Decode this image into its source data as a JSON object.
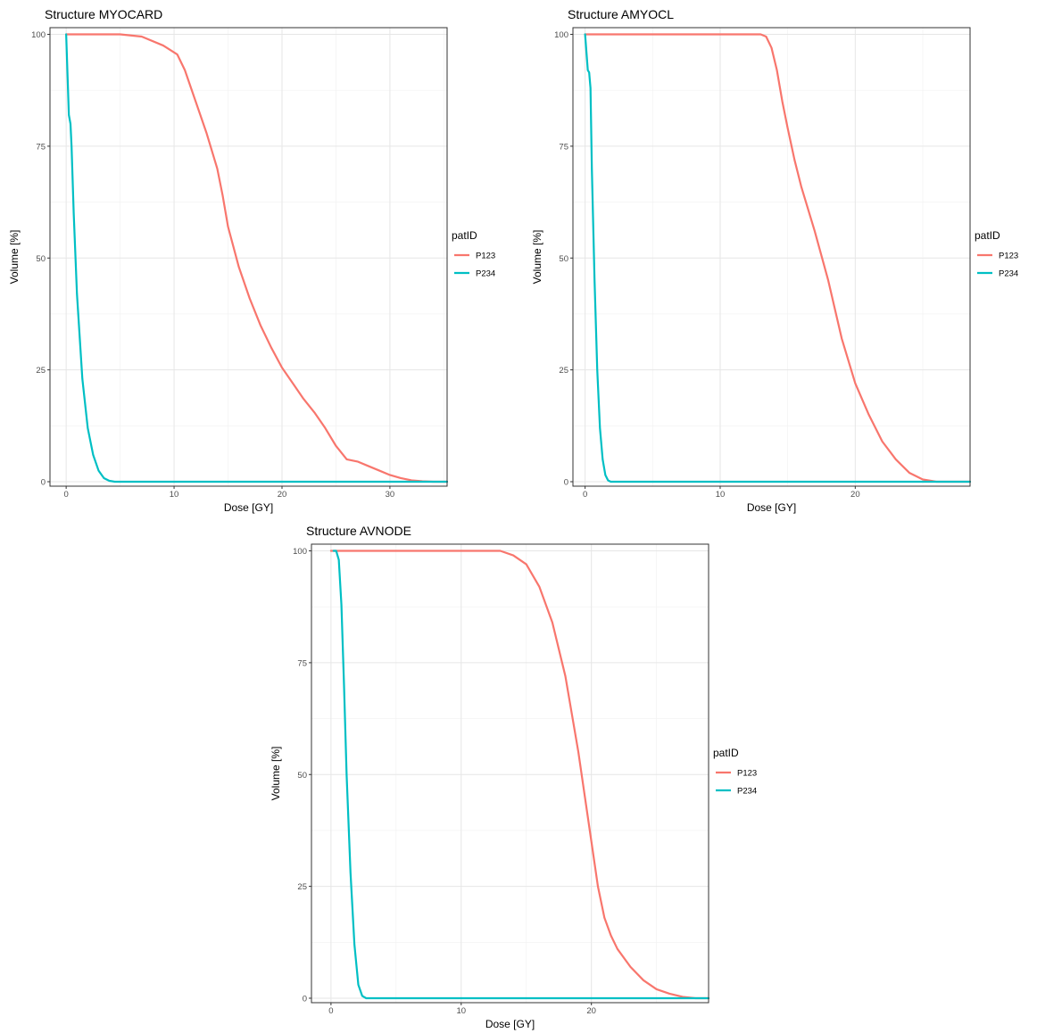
{
  "chart_data": [
    {
      "type": "line",
      "title": "Structure MYOCARD",
      "xlabel": "Dose [GY]",
      "ylabel": "Volume [%]",
      "xlim": [
        -1.5,
        35.3
      ],
      "ylim": [
        -1,
        101.5
      ],
      "xticks": [
        0,
        10,
        20,
        30
      ],
      "yticks": [
        0,
        25,
        50,
        75,
        100
      ],
      "grid": true,
      "legend": {
        "title": "patID",
        "position": "right"
      },
      "series": [
        {
          "name": "P123",
          "color": "#F8766D",
          "points": [
            [
              0,
              100
            ],
            [
              5,
              100
            ],
            [
              7,
              99.5
            ],
            [
              9,
              97.5
            ],
            [
              10.3,
              95.5
            ],
            [
              11,
              92
            ],
            [
              12,
              85
            ],
            [
              13,
              78
            ],
            [
              14,
              70
            ],
            [
              14.5,
              64
            ],
            [
              15,
              57
            ],
            [
              16,
              48
            ],
            [
              17,
              41
            ],
            [
              18,
              35
            ],
            [
              19,
              30
            ],
            [
              20,
              25.5
            ],
            [
              21,
              22
            ],
            [
              22,
              18.5
            ],
            [
              23,
              15.5
            ],
            [
              24,
              12
            ],
            [
              25,
              8
            ],
            [
              26,
              5
            ],
            [
              27,
              4.5
            ],
            [
              28,
              3.5
            ],
            [
              29,
              2.5
            ],
            [
              30,
              1.5
            ],
            [
              31,
              0.8
            ],
            [
              32,
              0.3
            ],
            [
              33,
              0.1
            ],
            [
              34,
              0
            ],
            [
              35.3,
              0
            ]
          ]
        },
        {
          "name": "P234",
          "color": "#00BFC4",
          "points": [
            [
              0,
              100
            ],
            [
              0.25,
              82
            ],
            [
              0.4,
              80
            ],
            [
              0.5,
              75
            ],
            [
              0.7,
              60
            ],
            [
              1,
              42
            ],
            [
              1.5,
              23
            ],
            [
              2,
              12
            ],
            [
              2.5,
              6
            ],
            [
              3,
              2.5
            ],
            [
              3.5,
              0.8
            ],
            [
              4,
              0.2
            ],
            [
              4.5,
              0
            ],
            [
              35.3,
              0
            ]
          ]
        }
      ]
    },
    {
      "type": "line",
      "title": "Structure AMYOCL",
      "xlabel": "Dose [GY]",
      "ylabel": "Volume [%]",
      "xlim": [
        -0.9,
        28.5
      ],
      "ylim": [
        -1,
        101.5
      ],
      "xticks": [
        0,
        10,
        20
      ],
      "yticks": [
        0,
        25,
        50,
        75,
        100
      ],
      "grid": true,
      "legend": {
        "title": "patID",
        "position": "right"
      },
      "series": [
        {
          "name": "P123",
          "color": "#F8766D",
          "points": [
            [
              0,
              100
            ],
            [
              13,
              100
            ],
            [
              13.4,
              99.5
            ],
            [
              13.8,
              97
            ],
            [
              14.2,
              92
            ],
            [
              14.6,
              85
            ],
            [
              15,
              79
            ],
            [
              15.5,
              72
            ],
            [
              16,
              66
            ],
            [
              17,
              56
            ],
            [
              18,
              45
            ],
            [
              19,
              32
            ],
            [
              20,
              22
            ],
            [
              21,
              15
            ],
            [
              22,
              9
            ],
            [
              23,
              5
            ],
            [
              24,
              2
            ],
            [
              25,
              0.5
            ],
            [
              26,
              0
            ],
            [
              28.5,
              0
            ]
          ]
        },
        {
          "name": "P234",
          "color": "#00BFC4",
          "points": [
            [
              0,
              100
            ],
            [
              0.2,
              92
            ],
            [
              0.3,
              91.5
            ],
            [
              0.4,
              88
            ],
            [
              0.5,
              70
            ],
            [
              0.7,
              45
            ],
            [
              0.9,
              25
            ],
            [
              1.1,
              12
            ],
            [
              1.3,
              5
            ],
            [
              1.5,
              1.5
            ],
            [
              1.7,
              0.3
            ],
            [
              1.9,
              0
            ],
            [
              28.5,
              0
            ]
          ]
        }
      ]
    },
    {
      "type": "line",
      "title": "Structure AVNODE",
      "xlabel": "Dose [GY]",
      "ylabel": "Volume [%]",
      "xlim": [
        -1.5,
        29
      ],
      "ylim": [
        -1,
        101.5
      ],
      "xticks": [
        0,
        10,
        20
      ],
      "yticks": [
        0,
        25,
        50,
        75,
        100
      ],
      "grid": true,
      "legend": {
        "title": "patID",
        "position": "right"
      },
      "series": [
        {
          "name": "P123",
          "color": "#F8766D",
          "points": [
            [
              0,
              100
            ],
            [
              13,
              100
            ],
            [
              14,
              99
            ],
            [
              15,
              97
            ],
            [
              16,
              92
            ],
            [
              17,
              84
            ],
            [
              18,
              72
            ],
            [
              19,
              55
            ],
            [
              19.5,
              45
            ],
            [
              20,
              35
            ],
            [
              20.5,
              25
            ],
            [
              21,
              18
            ],
            [
              21.5,
              14
            ],
            [
              22,
              11
            ],
            [
              23,
              7
            ],
            [
              24,
              4
            ],
            [
              25,
              2
            ],
            [
              26,
              1
            ],
            [
              27,
              0.3
            ],
            [
              28,
              0
            ],
            [
              29,
              0
            ]
          ]
        },
        {
          "name": "P234",
          "color": "#00BFC4",
          "points": [
            [
              0.2,
              100
            ],
            [
              0.4,
              100
            ],
            [
              0.6,
              98
            ],
            [
              0.8,
              88
            ],
            [
              1,
              70
            ],
            [
              1.2,
              50
            ],
            [
              1.5,
              28
            ],
            [
              1.8,
              12
            ],
            [
              2.1,
              3
            ],
            [
              2.4,
              0.5
            ],
            [
              2.7,
              0
            ],
            [
              29,
              0
            ]
          ]
        }
      ]
    }
  ]
}
